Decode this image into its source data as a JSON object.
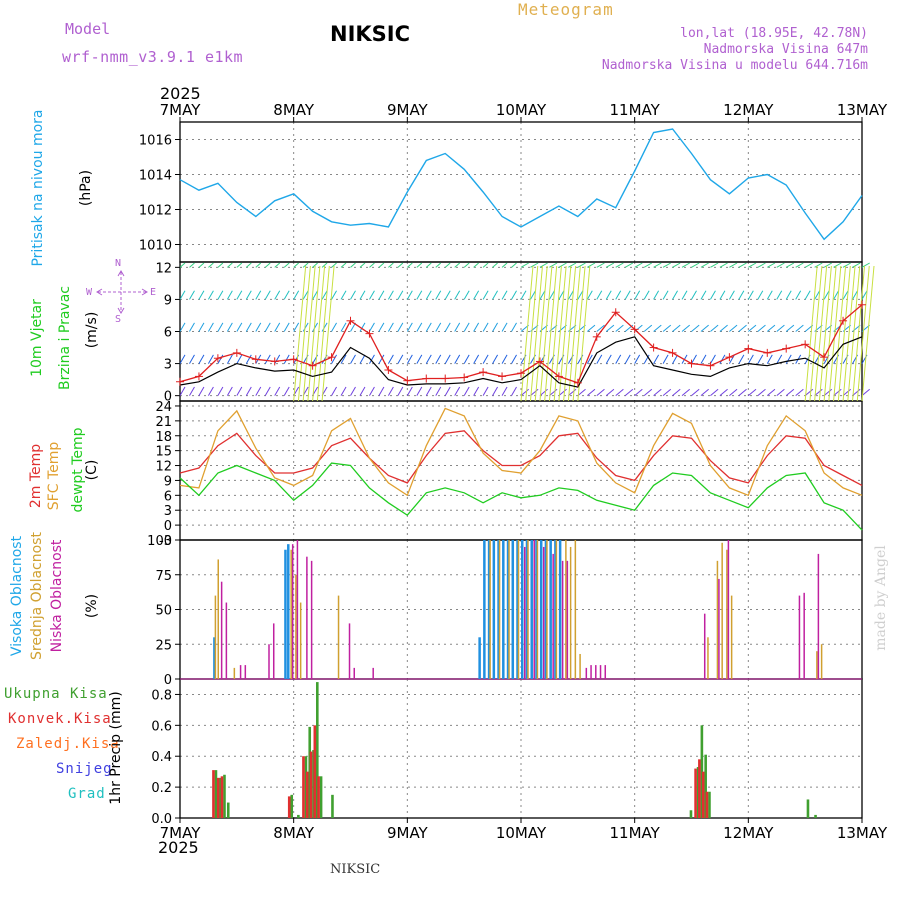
{
  "header": {
    "model_label": "Model",
    "model_value": "wrf-nmm_v3.9.1 e1km",
    "station": "NIKSIC",
    "meteogram": "Meteogram",
    "lonlat": "lon,lat (18.95E, 42.78N)",
    "elevation": "Nadmorska Visina 647m",
    "model_elevation": "Nadmorska Visina u modelu 644.716m",
    "year_top": "2025",
    "year_bottom": "2025",
    "footer_station": "NIKSIC",
    "watermark": "made by Angel"
  },
  "labels": {
    "pressure": [
      "Pritisak na nivou mora"
    ],
    "pressure_unit": "(hPa)",
    "wind": [
      "10m Vjetar",
      "Brzina i Pravac"
    ],
    "wind_unit": "(m/s)",
    "compass": {
      "n": "N",
      "s": "S",
      "e": "E",
      "w": "W"
    },
    "temp": [
      "2m Temp",
      "SFC Temp",
      "dewpt Temp"
    ],
    "temp_unit": "(C)",
    "cloud": [
      "Visoka Oblacnost",
      "Srednja Oblacnost",
      "Niska Oblacnost"
    ],
    "cloud_unit": "(%)",
    "precip": [
      "Ukupna Kisa",
      "Konvek.Kisa",
      "Zaledj.Kisa",
      "Snijeg",
      "Grad"
    ],
    "precip_unit": "1hr Precip (mm)"
  },
  "colors": {
    "pressure": "#1fa7e8",
    "wind_speed": "#000000",
    "gust": "#e02020",
    "t2m": "#e03030",
    "tsfc": "#e0a030",
    "dewpt": "#20cc20",
    "cloud_high": "#2090e0",
    "cloud_mid": "#d0a030",
    "cloud_low": "#c020a0",
    "precip_total": "#40a030",
    "precip_conv": "#e03030",
    "precip_frz": "#ff7020",
    "precip_snow": "#4040e0",
    "precip_hail": "#20c0c0",
    "grid": "#888888"
  },
  "chart_data": [
    {
      "type": "line",
      "panel": "pressure",
      "x_ticks": [
        "7MAY",
        "8MAY",
        "9MAY",
        "10MAY",
        "11MAY",
        "12MAY",
        "13MAY"
      ],
      "ylim": [
        1009,
        1017
      ],
      "y_ticks": [
        1010,
        1012,
        1014,
        1016
      ],
      "x_hours": [
        0,
        4,
        8,
        12,
        16,
        20,
        24,
        28,
        32,
        36,
        40,
        44,
        48,
        52,
        56,
        60,
        64,
        68,
        72,
        76,
        80,
        84,
        88,
        92,
        96,
        100,
        104,
        108,
        112,
        116,
        120,
        124,
        128,
        132,
        136,
        140,
        144
      ],
      "values": [
        1013.7,
        1013.1,
        1013.5,
        1012.4,
        1011.6,
        1012.5,
        1012.9,
        1011.9,
        1011.3,
        1011.1,
        1011.2,
        1011.0,
        1013.0,
        1014.8,
        1015.2,
        1014.3,
        1013.0,
        1011.6,
        1011.0,
        1011.6,
        1012.2,
        1011.6,
        1012.6,
        1012.1,
        1014.2,
        1016.4,
        1016.6,
        1015.2,
        1013.7,
        1012.9,
        1013.8,
        1014.0,
        1013.4,
        1011.8,
        1010.3,
        1011.3,
        1012.8
      ],
      "grid": true
    },
    {
      "type": "line",
      "panel": "wind",
      "ylim": [
        -0.5,
        12.5
      ],
      "y_ticks": [
        0,
        3,
        6,
        9,
        12
      ],
      "x_hours": [
        0,
        4,
        8,
        12,
        16,
        20,
        24,
        28,
        32,
        36,
        40,
        44,
        48,
        52,
        56,
        60,
        64,
        68,
        72,
        76,
        80,
        84,
        88,
        92,
        96,
        100,
        104,
        108,
        112,
        116,
        120,
        124,
        128,
        132,
        136,
        140,
        144
      ],
      "series": [
        {
          "name": "speed",
          "values": [
            1.0,
            1.3,
            2.2,
            3.0,
            2.6,
            2.3,
            2.4,
            1.8,
            2.2,
            4.5,
            3.5,
            1.5,
            1.0,
            1.1,
            1.1,
            1.2,
            1.6,
            1.2,
            1.5,
            2.8,
            1.2,
            0.8,
            4.0,
            5.0,
            5.5,
            2.8,
            2.4,
            2.0,
            1.8,
            2.6,
            3.0,
            2.8,
            3.2,
            3.5,
            2.6,
            4.8,
            5.5
          ]
        },
        {
          "name": "gust",
          "values": [
            1.3,
            1.8,
            3.5,
            4.0,
            3.4,
            3.2,
            3.4,
            2.8,
            3.6,
            7.0,
            5.8,
            2.4,
            1.4,
            1.6,
            1.6,
            1.7,
            2.2,
            1.8,
            2.1,
            3.2,
            1.8,
            1.2,
            5.5,
            7.8,
            6.2,
            4.5,
            4.0,
            3.0,
            2.8,
            3.6,
            4.4,
            4.0,
            4.4,
            4.8,
            3.6,
            7.0,
            8.5
          ]
        }
      ],
      "grid": true
    },
    {
      "type": "line",
      "panel": "temperature",
      "ylim": [
        -3,
        25
      ],
      "y_ticks": [
        -3,
        0,
        3,
        6,
        9,
        12,
        15,
        18,
        21,
        24
      ],
      "x_hours": [
        0,
        4,
        8,
        12,
        16,
        20,
        24,
        28,
        32,
        36,
        40,
        44,
        48,
        52,
        56,
        60,
        64,
        68,
        72,
        76,
        80,
        84,
        88,
        92,
        96,
        100,
        104,
        108,
        112,
        116,
        120,
        124,
        128,
        132,
        136,
        140,
        144
      ],
      "series": [
        {
          "name": "2m Temp",
          "values": [
            10.5,
            11.5,
            16.0,
            18.5,
            14.0,
            10.5,
            10.5,
            11.5,
            16.0,
            17.5,
            13.5,
            10.0,
            8.5,
            14.0,
            18.5,
            19.0,
            15.0,
            12.0,
            12.0,
            14.0,
            18.0,
            18.5,
            13.5,
            10.0,
            9.0,
            14.0,
            18.0,
            17.5,
            13.0,
            9.5,
            8.5,
            14.0,
            18.0,
            17.5,
            12.0,
            10.0,
            8.0
          ]
        },
        {
          "name": "SFC Temp",
          "values": [
            8.0,
            7.5,
            19.0,
            23.0,
            15.5,
            9.5,
            8.0,
            10.0,
            19.0,
            21.5,
            13.5,
            8.5,
            6.0,
            16.0,
            23.5,
            22.0,
            14.5,
            11.0,
            10.5,
            15.0,
            22.0,
            21.0,
            12.5,
            8.5,
            6.5,
            16.0,
            22.5,
            20.5,
            12.0,
            7.5,
            6.0,
            16.0,
            22.0,
            19.0,
            10.5,
            7.5,
            6.0
          ]
        },
        {
          "name": "dewpt Temp",
          "values": [
            9.5,
            6.0,
            10.5,
            12.0,
            10.5,
            9.0,
            5.0,
            8.0,
            12.5,
            12.0,
            7.5,
            4.5,
            2.0,
            6.5,
            7.5,
            6.5,
            4.5,
            6.5,
            5.5,
            6.0,
            7.5,
            7.0,
            5.0,
            4.0,
            3.0,
            8.0,
            10.5,
            10.0,
            6.5,
            5.0,
            3.5,
            7.5,
            10.0,
            10.5,
            4.5,
            3.0,
            -1.0
          ]
        }
      ],
      "grid": true
    },
    {
      "type": "bar",
      "panel": "cloud",
      "ylim": [
        0,
        100
      ],
      "y_ticks": [
        0,
        25,
        50,
        75,
        100
      ],
      "series": [
        {
          "name": "Visoka Oblacnost",
          "points": [
            [
              7,
              30
            ],
            [
              22,
              93
            ],
            [
              22.6,
              97
            ],
            [
              63,
              30
            ],
            [
              64,
              100
            ],
            [
              65,
              100
            ],
            [
              66,
              100
            ],
            [
              67,
              100
            ],
            [
              68,
              100
            ],
            [
              69,
              100
            ],
            [
              70,
              100
            ],
            [
              71,
              100
            ],
            [
              72,
              100
            ],
            [
              73,
              100
            ],
            [
              74,
              100
            ],
            [
              75,
              100
            ],
            [
              76,
              100
            ],
            [
              77,
              100
            ],
            [
              78,
              100
            ],
            [
              79,
              100
            ],
            [
              80,
              100
            ]
          ]
        },
        {
          "name": "Srednja Oblacnost",
          "points": [
            [
              7,
              60
            ],
            [
              7.6,
              86
            ],
            [
              11,
              8
            ],
            [
              23,
              93
            ],
            [
              24,
              75
            ],
            [
              25,
              55
            ],
            [
              33,
              60
            ],
            [
              65,
              100
            ],
            [
              67,
              100
            ],
            [
              69,
              100
            ],
            [
              71,
              100
            ],
            [
              73,
              100
            ],
            [
              75,
              100
            ],
            [
              77,
              100
            ],
            [
              79,
              100
            ],
            [
              81,
              100
            ],
            [
              82,
              95
            ],
            [
              83,
              100
            ],
            [
              84,
              18
            ],
            [
              111,
              30
            ],
            [
              113,
              85
            ],
            [
              114,
              98
            ],
            [
              115,
              93
            ],
            [
              116,
              60
            ],
            [
              134,
              20
            ],
            [
              135,
              25
            ]
          ]
        },
        {
          "name": "Niska Oblacnost",
          "points": [
            [
              8,
              70
            ],
            [
              9,
              55
            ],
            [
              12,
              10
            ],
            [
              13,
              10
            ],
            [
              18,
              25
            ],
            [
              19,
              40
            ],
            [
              23,
              97
            ],
            [
              24,
              100
            ],
            [
              26,
              88
            ],
            [
              27,
              85
            ],
            [
              35,
              40
            ],
            [
              36,
              8
            ],
            [
              40,
              8
            ],
            [
              72,
              95
            ],
            [
              74,
              100
            ],
            [
              76,
              95
            ],
            [
              78,
              90
            ],
            [
              80,
              85
            ],
            [
              81,
              85
            ],
            [
              85,
              8
            ],
            [
              86,
              10
            ],
            [
              87,
              10
            ],
            [
              88,
              10
            ],
            [
              89,
              10
            ],
            [
              110,
              47
            ],
            [
              113,
              72
            ],
            [
              115,
              100
            ],
            [
              130,
              60
            ],
            [
              131,
              62
            ],
            [
              134,
              90
            ]
          ]
        }
      ],
      "grid": true
    },
    {
      "type": "bar",
      "panel": "precip",
      "ylim": [
        0,
        0.9
      ],
      "y_ticks": [
        0.0,
        0.2,
        0.4,
        0.6,
        0.8
      ],
      "series": [
        {
          "name": "Ukupna Kisa",
          "points": [
            [
              7,
              0.31
            ],
            [
              8,
              0.26
            ],
            [
              8.8,
              0.28
            ],
            [
              9.6,
              0.1
            ],
            [
              23,
              0.15
            ],
            [
              24.4,
              0.02
            ],
            [
              26,
              0.4
            ],
            [
              26.8,
              0.59
            ],
            [
              27.6,
              0.44
            ],
            [
              28.4,
              0.88
            ],
            [
              29.2,
              0.27
            ],
            [
              31.6,
              0.15
            ],
            [
              107.3,
              0.05
            ],
            [
              108.8,
              0.33
            ],
            [
              109.6,
              0.6
            ],
            [
              110.4,
              0.41
            ],
            [
              111.2,
              0.17
            ],
            [
              132,
              0.12
            ],
            [
              133.6,
              0.02
            ]
          ]
        },
        {
          "name": "Konvek.Kisa",
          "points": [
            [
              7,
              0.31
            ],
            [
              8,
              0.26
            ],
            [
              8.8,
              0.27
            ],
            [
              23,
              0.14
            ],
            [
              26,
              0.4
            ],
            [
              26.8,
              0.3
            ],
            [
              27.6,
              0.43
            ],
            [
              28.4,
              0.6
            ],
            [
              29.2,
              0.27
            ],
            [
              108.8,
              0.32
            ],
            [
              109.6,
              0.38
            ],
            [
              110.4,
              0.3
            ],
            [
              111.2,
              0.17
            ]
          ]
        }
      ],
      "grid": true
    }
  ]
}
